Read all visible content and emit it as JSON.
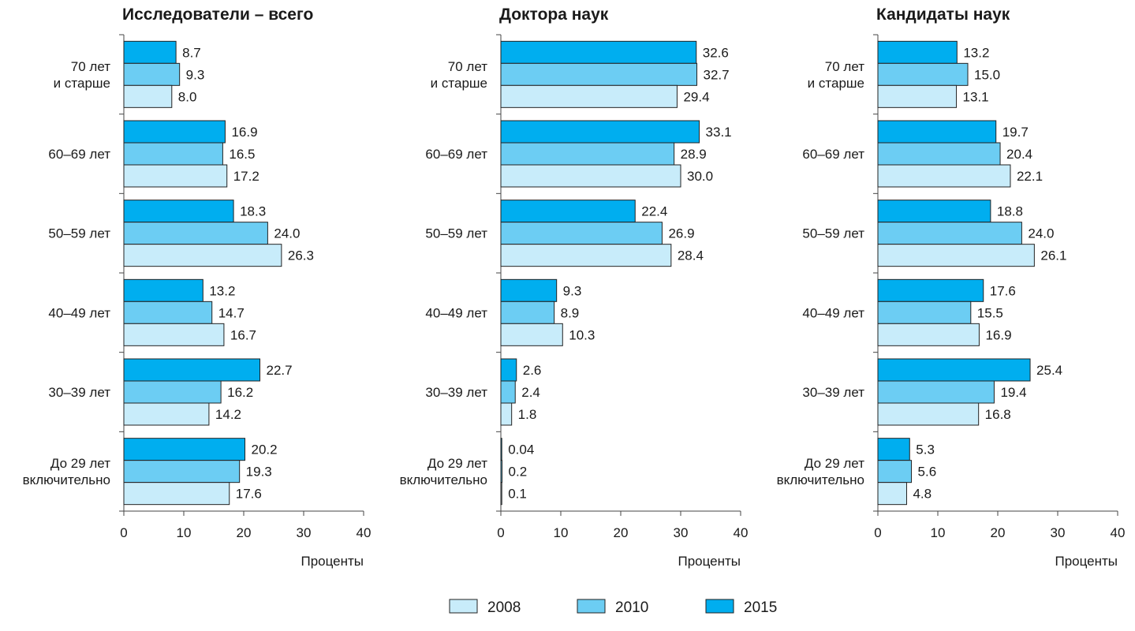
{
  "legend": {
    "items": [
      {
        "label": "2008",
        "color": "#c8ecfa"
      },
      {
        "label": "2010",
        "color": "#6ccdf3"
      },
      {
        "label": "2015",
        "color": "#00aeef"
      }
    ]
  },
  "chart_data": [
    {
      "type": "bar",
      "orientation": "horizontal",
      "title": "Исследователи – всего",
      "xlabel": "Проценты",
      "xlim": [
        0,
        40
      ],
      "xticks": [
        "0",
        "10",
        "20",
        "30",
        "40"
      ],
      "categories": [
        [
          "70 лет",
          "и старше"
        ],
        [
          "60–69 лет"
        ],
        [
          "50–59 лет"
        ],
        [
          "40–49 лет"
        ],
        [
          "30–39 лет"
        ],
        [
          "До 29 лет",
          "включительно"
        ]
      ],
      "series": [
        {
          "name": "2015",
          "values": [
            8.7,
            16.9,
            18.3,
            13.2,
            22.7,
            20.2
          ],
          "labels": [
            "8.7",
            "16.9",
            "18.3",
            "13.2",
            "22.7",
            "20.2"
          ]
        },
        {
          "name": "2010",
          "values": [
            9.3,
            16.5,
            24.0,
            14.7,
            16.2,
            19.3
          ],
          "labels": [
            "9.3",
            "16.5",
            "24.0",
            "14.7",
            "16.2",
            "19.3"
          ]
        },
        {
          "name": "2008",
          "values": [
            8.0,
            17.2,
            26.3,
            16.7,
            14.2,
            17.6
          ],
          "labels": [
            "8.0",
            "17.2",
            "26.3",
            "16.7",
            "14.2",
            "17.6"
          ]
        }
      ]
    },
    {
      "type": "bar",
      "orientation": "horizontal",
      "title": "Доктора наук",
      "xlabel": "Проценты",
      "xlim": [
        0,
        40
      ],
      "xticks": [
        "0",
        "10",
        "20",
        "30",
        "40"
      ],
      "categories": [
        [
          "70 лет",
          "и старше"
        ],
        [
          "60–69 лет"
        ],
        [
          "50–59 лет"
        ],
        [
          "40–49 лет"
        ],
        [
          "30–39 лет"
        ],
        [
          "До 29 лет",
          "включительно"
        ]
      ],
      "series": [
        {
          "name": "2015",
          "values": [
            32.6,
            33.1,
            22.4,
            9.3,
            2.6,
            0.04
          ],
          "labels": [
            "32.6",
            "33.1",
            "22.4",
            "9.3",
            "2.6",
            "0.04"
          ]
        },
        {
          "name": "2010",
          "values": [
            32.7,
            28.9,
            26.9,
            8.9,
            2.4,
            0.2
          ],
          "labels": [
            "32.7",
            "28.9",
            "26.9",
            "8.9",
            "2.4",
            "0.2"
          ]
        },
        {
          "name": "2008",
          "values": [
            29.4,
            30.0,
            28.4,
            10.3,
            1.8,
            0.1
          ],
          "labels": [
            "29.4",
            "30.0",
            "28.4",
            "10.3",
            "1.8",
            "0.1"
          ]
        }
      ]
    },
    {
      "type": "bar",
      "orientation": "horizontal",
      "title": "Кандидаты наук",
      "xlabel": "Проценты",
      "xlim": [
        0,
        40
      ],
      "xticks": [
        "0",
        "10",
        "20",
        "30",
        "40"
      ],
      "categories": [
        [
          "70 лет",
          "и старше"
        ],
        [
          "60–69 лет"
        ],
        [
          "50–59 лет"
        ],
        [
          "40–49 лет"
        ],
        [
          "30–39 лет"
        ],
        [
          "До 29 лет",
          "включительно"
        ]
      ],
      "series": [
        {
          "name": "2015",
          "values": [
            13.2,
            19.7,
            18.8,
            17.6,
            25.4,
            5.3
          ],
          "labels": [
            "13.2",
            "19.7",
            "18.8",
            "17.6",
            "25.4",
            "5.3"
          ]
        },
        {
          "name": "2010",
          "values": [
            15.0,
            20.4,
            24.0,
            15.5,
            19.4,
            5.6
          ],
          "labels": [
            "15.0",
            "20.4",
            "24.0",
            "15.5",
            "19.4",
            "5.6"
          ]
        },
        {
          "name": "2008",
          "values": [
            13.1,
            22.1,
            26.1,
            16.9,
            16.8,
            4.8
          ],
          "labels": [
            "13.1",
            "22.1",
            "26.1",
            "16.9",
            "16.8",
            "4.8"
          ]
        }
      ]
    }
  ]
}
